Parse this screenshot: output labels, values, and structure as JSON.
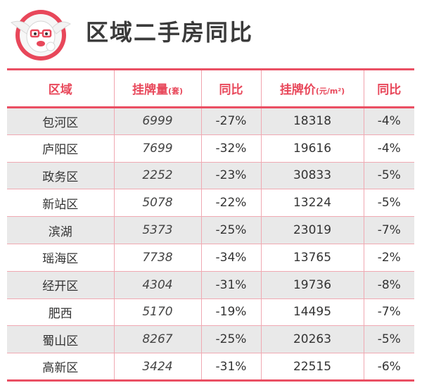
{
  "title": "区域二手房同比",
  "table": {
    "headers": {
      "region": "区域",
      "listing": "挂牌量",
      "listing_unit": "(套)",
      "listing_yoy": "同比",
      "price": "挂牌价",
      "price_unit": "(元/m²)",
      "price_yoy": "同比"
    },
    "rows": [
      {
        "region": "包河区",
        "listing": "6999",
        "listing_yoy": "-27%",
        "price": "18318",
        "price_yoy": "-4%"
      },
      {
        "region": "庐阳区",
        "listing": "7699",
        "listing_yoy": "-32%",
        "price": "19616",
        "price_yoy": "-4%"
      },
      {
        "region": "政务区",
        "listing": "2252",
        "listing_yoy": "-23%",
        "price": "30833",
        "price_yoy": "-5%"
      },
      {
        "region": "新站区",
        "listing": "5078",
        "listing_yoy": "-22%",
        "price": "13224",
        "price_yoy": "-5%"
      },
      {
        "region": "滨湖",
        "listing": "5373",
        "listing_yoy": "-25%",
        "price": "23019",
        "price_yoy": "-7%"
      },
      {
        "region": "瑶海区",
        "listing": "7738",
        "listing_yoy": "-34%",
        "price": "13765",
        "price_yoy": "-2%"
      },
      {
        "region": "经开区",
        "listing": "4304",
        "listing_yoy": "-31%",
        "price": "19736",
        "price_yoy": "-8%"
      },
      {
        "region": "肥西",
        "listing": "5170",
        "listing_yoy": "-19%",
        "price": "14495",
        "price_yoy": "-7%"
      },
      {
        "region": "蜀山区",
        "listing": "8267",
        "listing_yoy": "-25%",
        "price": "20263",
        "price_yoy": "-5%"
      },
      {
        "region": "高新区",
        "listing": "3424",
        "listing_yoy": "-31%",
        "price": "22515",
        "price_yoy": "-6%"
      }
    ]
  },
  "colors": {
    "accent": "#ea4f63",
    "header_text": "#e8475a",
    "stripe": "#e9e9e9",
    "title_text": "#3a3a3a"
  },
  "icons": {
    "logo": "mascot-logo-icon"
  }
}
